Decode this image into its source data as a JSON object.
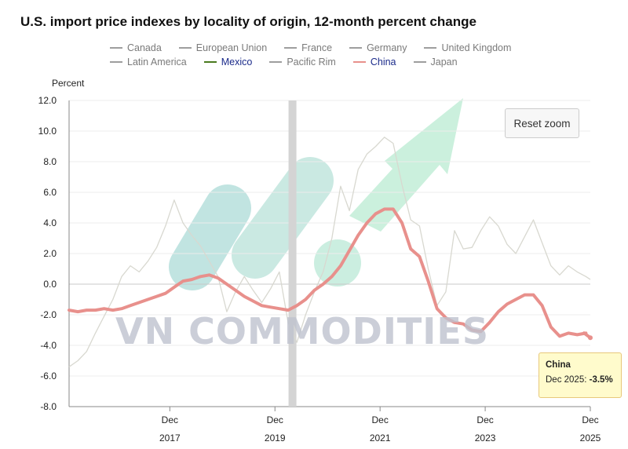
{
  "title": "U.S. import price indexes by locality of origin, 12-month percent change",
  "y_unit_label": "Percent",
  "reset_zoom_label": "Reset zoom",
  "watermark": "VN COMMODITIES",
  "legend": {
    "row1": [
      {
        "label": "Canada",
        "color": "#9e9e9e"
      },
      {
        "label": "European Union",
        "color": "#9e9e9e"
      },
      {
        "label": "France",
        "color": "#9e9e9e"
      },
      {
        "label": "Germany",
        "color": "#9e9e9e"
      },
      {
        "label": "United Kingdom",
        "color": "#9e9e9e"
      }
    ],
    "row2": [
      {
        "label": "Latin America",
        "color": "#9e9e9e"
      },
      {
        "label": "Mexico",
        "color": "#4a7a1e"
      },
      {
        "label": "Pacific Rim",
        "color": "#9e9e9e"
      },
      {
        "label": "China",
        "color": "#e8908c"
      },
      {
        "label": "Japan",
        "color": "#9e9e9e"
      }
    ]
  },
  "tooltip": {
    "series": "China",
    "date": "Dec 2025:",
    "value": "-3.5%"
  },
  "chart_data": {
    "type": "line",
    "ylim": [
      -8,
      12
    ],
    "yticks": [
      "12.0",
      "10.0",
      "8.0",
      "6.0",
      "4.0",
      "2.0",
      "0.0",
      "-2.0",
      "-4.0",
      "-6.0",
      "-8.0"
    ],
    "xticks": [
      {
        "month": "Dec",
        "year": "2017"
      },
      {
        "month": "Dec",
        "year": "2019"
      },
      {
        "month": "Dec",
        "year": "2021"
      },
      {
        "month": "Dec",
        "year": "2023"
      },
      {
        "month": "Dec",
        "year": "2025"
      }
    ],
    "x_start": "Jan 2016",
    "x_end": "Dec 2025",
    "highlight_period": "Apr 2020",
    "series": [
      {
        "name": "China",
        "color": "#e8908c",
        "highlighted": true,
        "points": [
          [
            "Jan 2016",
            -1.7
          ],
          [
            "Mar 2016",
            -1.8
          ],
          [
            "May 2016",
            -1.7
          ],
          [
            "Jul 2016",
            -1.7
          ],
          [
            "Sep 2016",
            -1.6
          ],
          [
            "Nov 2016",
            -1.7
          ],
          [
            "Jan 2017",
            -1.6
          ],
          [
            "Mar 2017",
            -1.4
          ],
          [
            "May 2017",
            -1.2
          ],
          [
            "Jul 2017",
            -1.0
          ],
          [
            "Sep 2017",
            -0.8
          ],
          [
            "Nov 2017",
            -0.6
          ],
          [
            "Jan 2018",
            -0.2
          ],
          [
            "Mar 2018",
            0.2
          ],
          [
            "May 2018",
            0.3
          ],
          [
            "Jul 2018",
            0.5
          ],
          [
            "Sep 2018",
            0.6
          ],
          [
            "Nov 2018",
            0.4
          ],
          [
            "Jan 2019",
            0.0
          ],
          [
            "Mar 2019",
            -0.4
          ],
          [
            "May 2019",
            -0.8
          ],
          [
            "Jul 2019",
            -1.1
          ],
          [
            "Sep 2019",
            -1.4
          ],
          [
            "Nov 2019",
            -1.5
          ],
          [
            "Jan 2020",
            -1.6
          ],
          [
            "Mar 2020",
            -1.7
          ],
          [
            "May 2020",
            -1.4
          ],
          [
            "Jul 2020",
            -1.0
          ],
          [
            "Sep 2020",
            -0.4
          ],
          [
            "Nov 2020",
            0.0
          ],
          [
            "Jan 2021",
            0.5
          ],
          [
            "Mar 2021",
            1.2
          ],
          [
            "May 2021",
            2.2
          ],
          [
            "Jul 2021",
            3.2
          ],
          [
            "Sep 2021",
            4.0
          ],
          [
            "Nov 2021",
            4.6
          ],
          [
            "Jan 2022",
            4.9
          ],
          [
            "Mar 2022",
            4.9
          ],
          [
            "May 2022",
            4.0
          ],
          [
            "Jul 2022",
            2.3
          ],
          [
            "Sep 2022",
            1.8
          ],
          [
            "Nov 2022",
            0.2
          ],
          [
            "Jan 2023",
            -1.6
          ],
          [
            "Mar 2023",
            -2.2
          ],
          [
            "May 2023",
            -2.5
          ],
          [
            "Jul 2023",
            -2.6
          ],
          [
            "Sep 2023",
            -3.0
          ],
          [
            "Nov 2023",
            -3.1
          ],
          [
            "Jan 2024",
            -2.5
          ],
          [
            "Mar 2024",
            -1.8
          ],
          [
            "May 2024",
            -1.3
          ],
          [
            "Jul 2024",
            -1.0
          ],
          [
            "Sep 2024",
            -0.7
          ],
          [
            "Nov 2024",
            -0.7
          ],
          [
            "Jan 2025",
            -1.4
          ],
          [
            "Mar 2025",
            -2.8
          ],
          [
            "May 2025",
            -3.4
          ],
          [
            "Jul 2025",
            -3.2
          ],
          [
            "Sep 2025",
            -3.3
          ],
          [
            "Nov 2025",
            -3.2
          ],
          [
            "Dec 2025",
            -3.5
          ]
        ]
      },
      {
        "name": "Latin America",
        "color": "#d8d8d0",
        "highlighted": false,
        "points": [
          [
            "Jan 2016",
            -5.4
          ],
          [
            "Mar 2016",
            -5.0
          ],
          [
            "May 2016",
            -4.4
          ],
          [
            "Jul 2016",
            -3.2
          ],
          [
            "Sep 2016",
            -2.1
          ],
          [
            "Nov 2016",
            -1.0
          ],
          [
            "Jan 2017",
            0.5
          ],
          [
            "Mar 2017",
            1.2
          ],
          [
            "May 2017",
            0.8
          ],
          [
            "Jul 2017",
            1.5
          ],
          [
            "Sep 2017",
            2.4
          ],
          [
            "Nov 2017",
            3.8
          ],
          [
            "Jan 2018",
            5.5
          ],
          [
            "Mar 2018",
            4.0
          ],
          [
            "May 2018",
            3.2
          ],
          [
            "Jul 2018",
            2.5
          ],
          [
            "Sep 2018",
            1.5
          ],
          [
            "Nov 2018",
            0.5
          ],
          [
            "Jan 2019",
            -1.8
          ],
          [
            "Mar 2019",
            -0.5
          ],
          [
            "May 2019",
            0.5
          ],
          [
            "Jul 2019",
            -0.4
          ],
          [
            "Sep 2019",
            -1.2
          ],
          [
            "Nov 2019",
            -0.3
          ],
          [
            "Jan 2020",
            0.8
          ],
          [
            "Mar 2020",
            -2.5
          ],
          [
            "May 2020",
            -3.8
          ],
          [
            "Jul 2020",
            -2.0
          ],
          [
            "Sep 2020",
            -0.5
          ],
          [
            "Nov 2020",
            0.8
          ],
          [
            "Jan 2021",
            3.0
          ],
          [
            "Mar 2021",
            6.4
          ],
          [
            "May 2021",
            4.8
          ],
          [
            "Jul 2021",
            7.5
          ],
          [
            "Sep 2021",
            8.5
          ],
          [
            "Nov 2021",
            9.0
          ],
          [
            "Jan 2022",
            9.6
          ],
          [
            "Mar 2022",
            9.2
          ],
          [
            "May 2022",
            6.5
          ],
          [
            "Jul 2022",
            4.2
          ],
          [
            "Sep 2022",
            3.8
          ],
          [
            "Nov 2022",
            1.0
          ],
          [
            "Jan 2023",
            -1.4
          ],
          [
            "Mar 2023",
            -0.5
          ],
          [
            "May 2023",
            3.5
          ],
          [
            "Jul 2023",
            2.3
          ],
          [
            "Sep 2023",
            2.4
          ],
          [
            "Nov 2023",
            3.5
          ],
          [
            "Jan 2024",
            4.4
          ],
          [
            "Mar 2024",
            3.8
          ],
          [
            "May 2024",
            2.6
          ],
          [
            "Jul 2024",
            2.0
          ],
          [
            "Sep 2024",
            3.1
          ],
          [
            "Nov 2024",
            4.2
          ],
          [
            "Jan 2025",
            2.7
          ],
          [
            "Mar 2025",
            1.2
          ],
          [
            "May 2025",
            0.6
          ],
          [
            "Jul 2025",
            1.2
          ],
          [
            "Sep 2025",
            0.8
          ],
          [
            "Nov 2025",
            0.5
          ],
          [
            "Dec 2025",
            0.3
          ]
        ]
      }
    ]
  }
}
